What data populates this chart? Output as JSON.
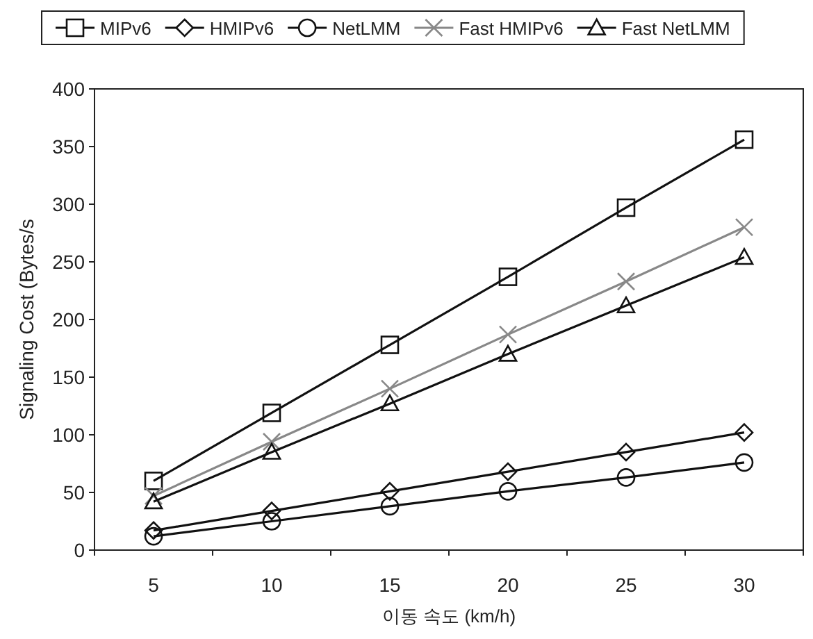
{
  "chart_data": {
    "type": "line",
    "xlabel": "이동 속도 (km/h)",
    "ylabel": "Signaling Cost (Bytes/s",
    "categories": [
      "5",
      "10",
      "15",
      "20",
      "25",
      "30"
    ],
    "ylim": [
      0,
      400
    ],
    "yticks": [
      0,
      50,
      100,
      150,
      200,
      250,
      300,
      350,
      400
    ],
    "grid": false,
    "legend": "top",
    "series": [
      {
        "name": "MIPv6",
        "color": "#111111",
        "marker": "square",
        "values": [
          60,
          119,
          178,
          237,
          297,
          356
        ]
      },
      {
        "name": "HMIPv6",
        "color": "#111111",
        "marker": "diamond",
        "values": [
          17,
          34,
          51,
          68,
          85,
          102
        ]
      },
      {
        "name": "NetLMM",
        "color": "#111111",
        "marker": "circle",
        "values": [
          12,
          25,
          38,
          51,
          63,
          76
        ]
      },
      {
        "name": "Fast HMIPv6",
        "color": "#888888",
        "marker": "cross",
        "values": [
          47,
          94,
          140,
          187,
          233,
          280
        ]
      },
      {
        "name": "Fast NetLMM",
        "color": "#111111",
        "marker": "triangle",
        "values": [
          42,
          85,
          127,
          170,
          212,
          254
        ]
      }
    ]
  }
}
